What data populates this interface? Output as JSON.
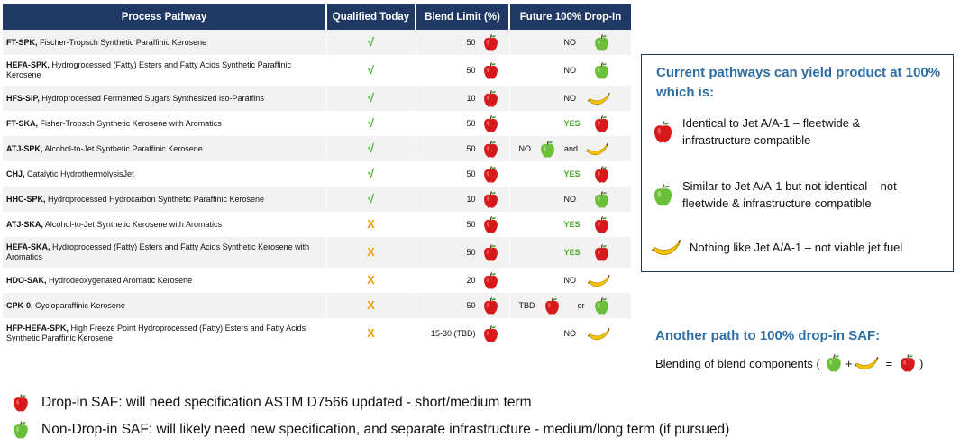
{
  "table": {
    "headers": {
      "pathway": "Process Pathway",
      "qualified": "Qualified Today",
      "blend": "Blend Limit (%)",
      "future": "Future 100% Drop-In"
    },
    "rows": [
      {
        "abbr": "FT-SPK,",
        "desc": "Fischer-Tropsch Synthetic Paraffinic Kerosene",
        "qualified": "√",
        "blend": "50",
        "future": "NO"
      },
      {
        "abbr": "HEFA-SPK,",
        "desc": "Hydrogrocessed (Fatty) Esters and Fatty Acids Synthetic Paraffinic Kerosene",
        "qualified": "√",
        "blend": "50",
        "future": "NO"
      },
      {
        "abbr": "HFS-SIP,",
        "desc": "Hydroprocessed Fermented Sugars Synthesized iso-Paraffins",
        "qualified": "√",
        "blend": "10",
        "future": "NO"
      },
      {
        "abbr": "FT-SKA,",
        "desc": "Fisher-Tropsch Synthetic Kerosene with Aromatics",
        "qualified": "√",
        "blend": "50",
        "future": "YES"
      },
      {
        "abbr": "ATJ-SPK,",
        "desc": "Alcohol-to-Jet Synthetic Paraffinic Kerosene",
        "qualified": "√",
        "blend": "50",
        "future_a": "NO",
        "future_b": "and"
      },
      {
        "abbr": "CHJ,",
        "desc": "Catalytic HydrothermolysisJet",
        "qualified": "√",
        "blend": "50",
        "future": "YES"
      },
      {
        "abbr": "HHC-SPK,",
        "desc": "Hydroprocessed Hydrocarbon Synthetic Paraffinic Kerosene",
        "qualified": "√",
        "blend": "10",
        "future": "NO"
      },
      {
        "abbr": "ATJ-SKA,",
        "desc": "Alcohol-to-Jet Synthetic Kerosene with Aromatics",
        "qualified": "X",
        "blend": "50",
        "future": "YES"
      },
      {
        "abbr": "HEFA-SKA,",
        "desc": "Hydroprocessed (Fatty) Esters and Fatty Acids Synthetic Kerosene with Aromatics",
        "qualified": "X",
        "blend": "50",
        "future": "YES"
      },
      {
        "abbr": "HDO-SAK,",
        "desc": "Hydrodeoxygenated Aromatic Kerosene",
        "qualified": "X",
        "blend": "20",
        "future": "NO"
      },
      {
        "abbr": "CPK-0,",
        "desc": "Cycloparaffinic Kerosene",
        "qualified": "X",
        "blend": "50",
        "future_a": "TBD",
        "future_b": "or"
      },
      {
        "abbr": "HFP-HEFA-SPK,",
        "desc": "High Freeze Point Hydroprocessed (Fatty) Esters and Fatty Acids Synthetic Paraffinic Kerosene",
        "qualified": "X",
        "blend": "15-30 (TBD)",
        "future": "NO"
      }
    ]
  },
  "legend": {
    "title": "Current pathways can yield product at 100% which is:",
    "items": [
      {
        "icon": "red-apple-icon",
        "text": "Identical to Jet A/A-1 – fleetwide & infrastructure compatible"
      },
      {
        "icon": "green-apple-icon",
        "text": "Similar to Jet A/A-1 but not identical – not fleetwide & infrastructure compatible"
      },
      {
        "icon": "banana-icon",
        "text": "Nothing like Jet A/A-1 – not viable jet fuel"
      }
    ]
  },
  "another_path": {
    "title": "Another path to 100% drop-in SAF:",
    "text": "Blending of blend components (",
    "plus": "+",
    "equals": "=",
    "close": ")"
  },
  "notes": {
    "dropin": "Drop-in SAF: will need specification ASTM D7566 updated - short/medium term",
    "nondropin": "Non-Drop-in SAF: will likely need new specification, and separate infrastructure - medium/long term (if pursued)"
  },
  "colors": {
    "header_bg": "#1f3864",
    "check": "#3fae2a",
    "cross": "#f0a000",
    "yes": "#4aa82c",
    "title_blue": "#2f6ea5"
  }
}
